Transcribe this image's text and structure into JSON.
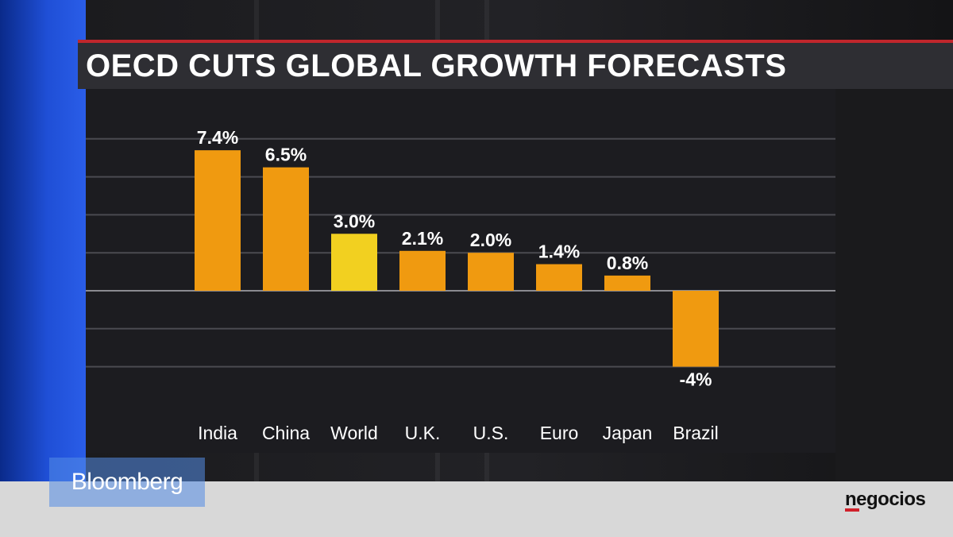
{
  "broadcaster": "Bloomberg",
  "publisher": "negocios",
  "colors": {
    "bar": "#f09a10",
    "highlight_bar": "#f2d020",
    "accent_red": "#c0262c",
    "grid": "#4a4a50",
    "text": "#ffffff"
  },
  "chart_data": {
    "type": "bar",
    "title": "OECD CUTS GLOBAL GROWTH FORECASTS",
    "categories": [
      "India",
      "China",
      "World",
      "U.K.",
      "U.S.",
      "Euro",
      "Japan",
      "Brazil"
    ],
    "values": [
      7.4,
      6.5,
      3.0,
      2.1,
      2.0,
      1.4,
      0.8,
      -4
    ],
    "data_labels": [
      "7.4%",
      "6.5%",
      "3.0%",
      "2.1%",
      "2.0%",
      "1.4%",
      "0.8%",
      "-4%"
    ],
    "highlight_category": "World",
    "xlabel": "",
    "ylabel": "",
    "ylim": [
      -4,
      9
    ],
    "grid": true,
    "legend": "none"
  }
}
